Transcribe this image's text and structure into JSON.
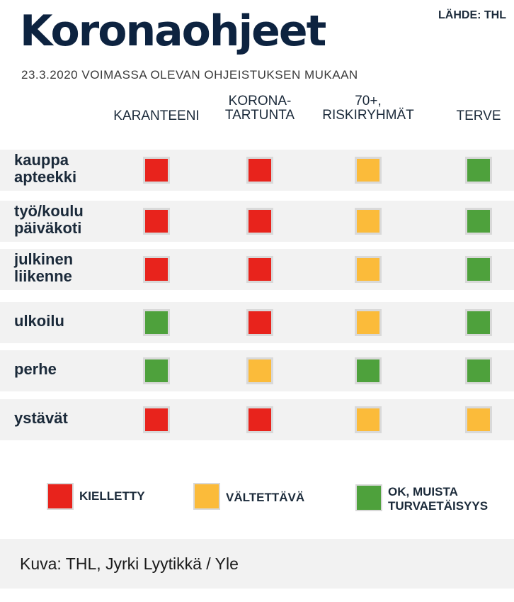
{
  "header": {
    "title": "Koronaohjeet",
    "source": "LÄHDE: THL",
    "subtitle": "23.3.2020 VOIMASSA OLEVAN OHJEISTUKSEN MUKAAN"
  },
  "columns": [
    {
      "line1": "",
      "line2": "KARANTEENI"
    },
    {
      "line1": "KORONA-",
      "line2": "TARTUNTA"
    },
    {
      "line1": "70+,",
      "line2": "RISKIRYHMÄT"
    },
    {
      "line1": "",
      "line2": "TERVE"
    }
  ],
  "rows": [
    {
      "line1": "kauppa",
      "line2": "apteekki",
      "values": [
        "kielletty",
        "kielletty",
        "valtettava",
        "ok"
      ]
    },
    {
      "line1": "työ/koulu",
      "line2": "päiväkoti",
      "values": [
        "kielletty",
        "kielletty",
        "valtettava",
        "ok"
      ]
    },
    {
      "line1": "julkinen",
      "line2": "liikenne",
      "values": [
        "kielletty",
        "kielletty",
        "valtettava",
        "ok"
      ]
    },
    {
      "line1": "ulkoilu",
      "line2": "",
      "values": [
        "ok",
        "kielletty",
        "valtettava",
        "ok"
      ]
    },
    {
      "line1": "perhe",
      "line2": "",
      "values": [
        "ok",
        "valtettava",
        "ok",
        "ok"
      ]
    },
    {
      "line1": "ystävät",
      "line2": "",
      "values": [
        "kielletty",
        "kielletty",
        "valtettava",
        "valtettava"
      ]
    }
  ],
  "colors": {
    "kielletty": "#e8231c",
    "valtettava": "#fbbb3a",
    "ok": "#4ea13c"
  },
  "legend": [
    {
      "key": "kielletty",
      "line1": "KIELLETTY",
      "line2": ""
    },
    {
      "key": "valtettava",
      "line1": "VÄLTETTÄVÄ",
      "line2": ""
    },
    {
      "key": "ok",
      "line1": "OK, MUISTA",
      "line2": "TURVAETÄISYYS"
    }
  ],
  "footer": {
    "credit": "Kuva: THL, Jyrki Lyytikkä / Yle"
  }
}
